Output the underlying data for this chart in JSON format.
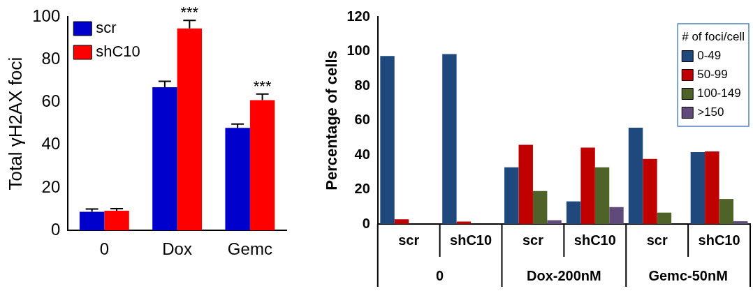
{
  "chart_data": [
    {
      "type": "bar",
      "ylabel": "Total γH2AX foci",
      "categories": [
        "0",
        "Dox",
        "Gemc"
      ],
      "series": [
        {
          "name": "scr",
          "color": "#0000cc",
          "values": [
            8.7,
            67,
            48
          ],
          "errors": [
            1.3,
            2.8,
            1.8
          ]
        },
        {
          "name": "shC10",
          "color": "#ff0000",
          "values": [
            9.2,
            94.5,
            61
          ],
          "errors": [
            1,
            3.8,
            2.8
          ]
        }
      ],
      "ylim": [
        0,
        100
      ],
      "yticks": [
        0,
        20,
        40,
        60,
        80,
        100
      ],
      "grid": false,
      "legend": "top left",
      "annotations": [
        {
          "text": "***",
          "x": "Dox",
          "y": 94.5
        },
        {
          "text": "***",
          "x": "Gemc",
          "y": 61
        }
      ]
    },
    {
      "type": "bar",
      "ylabel": "Percentage of cells",
      "legend_title": "# of foci/cell",
      "categories": [
        "scr",
        "shC10",
        "scr",
        "shC10",
        "scr",
        "shC10"
      ],
      "series": [
        {
          "name": "0-49",
          "color": "#1f497d",
          "values": [
            97.3,
            98.4,
            32.8,
            13.1,
            55.8,
            41.6
          ]
        },
        {
          "name": "50-99",
          "color": "#c00000",
          "values": [
            2.7,
            1.4,
            45.9,
            44.2,
            37.7,
            42
          ]
        },
        {
          "name": "100-149",
          "color": "#4f6228",
          "values": [
            0,
            0,
            19.1,
            32.8,
            6.6,
            14.5
          ]
        },
        {
          "name": ">150",
          "color": "#604a7b",
          "values": [
            0,
            0,
            2.2,
            9.8,
            0,
            1.6
          ]
        }
      ],
      "ylim": [
        0,
        120
      ],
      "yticks": [
        0,
        20,
        40,
        60,
        80,
        100,
        120
      ],
      "grid": false,
      "legend": "top right",
      "annotations": [
        "0",
        "Dox-200nM",
        "Gemc-50nM"
      ]
    }
  ]
}
